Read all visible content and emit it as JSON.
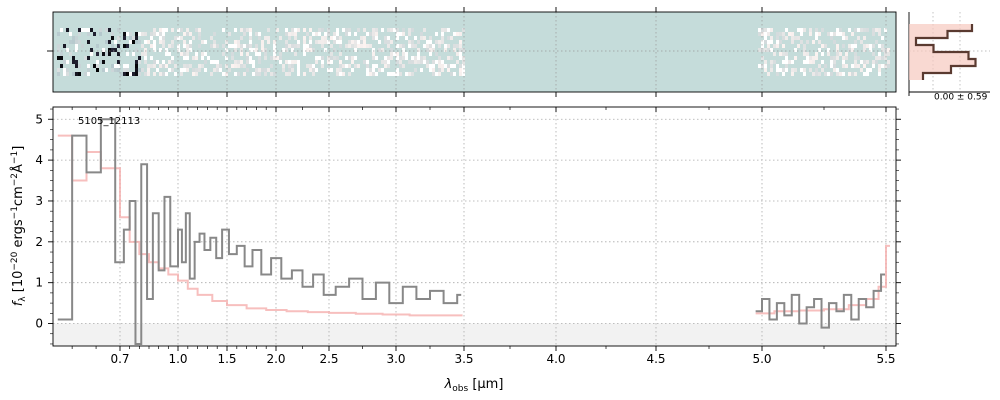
{
  "chart_data": {
    "type": "line",
    "object_label": "5105_12113",
    "xlabel_main": "λ",
    "xlabel_sub": "obs",
    "xlabel_unit": "[μm]",
    "ylabel": {
      "f": "f",
      "sub": "λ",
      "open": "[10",
      "exp1": "−20",
      "mid": " ergs",
      "exp2": "−1",
      "cm": "cm",
      "exp3": "−2",
      "ang": "Å",
      "exp4": "−1",
      "close": "]"
    },
    "x_ticks": [
      {
        "value": 0.7,
        "label": "0.7"
      },
      {
        "value": 1.0,
        "label": "1.0"
      },
      {
        "value": 1.5,
        "label": "1.5"
      },
      {
        "value": 2.0,
        "label": "2.0"
      },
      {
        "value": 2.5,
        "label": "2.5"
      },
      {
        "value": 3.0,
        "label": "3.0"
      },
      {
        "value": 3.5,
        "label": "3.5"
      },
      {
        "value": 4.0,
        "label": "4.0"
      },
      {
        "value": 4.5,
        "label": "4.5"
      },
      {
        "value": 5.0,
        "label": "5.0"
      },
      {
        "value": 5.5,
        "label": "5.5"
      }
    ],
    "y_ticks": [
      {
        "value": 0,
        "label": "0"
      },
      {
        "value": 1,
        "label": "1"
      },
      {
        "value": 2,
        "label": "2"
      },
      {
        "value": 3,
        "label": "3"
      },
      {
        "value": 4,
        "label": "4"
      },
      {
        "value": 5,
        "label": "5"
      }
    ],
    "ylim": [
      -0.55,
      5.3
    ],
    "xlim": [
      0.56,
      5.53
    ],
    "grid": true,
    "noise_label": "0.00 ± 0.59",
    "series": [
      {
        "role": "observed-spectrum",
        "color": "#888888",
        "x": [
          0.57,
          0.6,
          0.63,
          0.66,
          0.69,
          0.72,
          0.75,
          0.78,
          0.81,
          0.84,
          0.87,
          0.9,
          0.93,
          0.96,
          1.0,
          1.04,
          1.08,
          1.12,
          1.17,
          1.22,
          1.27,
          1.33,
          1.39,
          1.45,
          1.52,
          1.6,
          1.68,
          1.76,
          1.85,
          1.95,
          2.05,
          2.15,
          2.25,
          2.35,
          2.45,
          2.55,
          2.65,
          2.75,
          2.85,
          2.95,
          3.05,
          3.15,
          3.25,
          3.35,
          3.45
        ],
        "y": [
          0.1,
          4.6,
          3.7,
          5.0,
          1.5,
          2.3,
          3.0,
          -0.5,
          3.9,
          0.6,
          2.7,
          1.3,
          3.1,
          1.4,
          2.3,
          1.5,
          2.7,
          1.1,
          2.0,
          2.2,
          1.8,
          2.1,
          1.6,
          2.3,
          1.7,
          1.9,
          1.4,
          1.8,
          1.2,
          1.6,
          1.1,
          1.3,
          0.9,
          1.2,
          0.7,
          0.9,
          1.1,
          0.6,
          1.0,
          0.5,
          0.9,
          0.6,
          0.8,
          0.5,
          0.7
        ]
      },
      {
        "role": "observed-spectrum-red",
        "color": "#888888",
        "x": [
          4.97,
          5.0,
          5.03,
          5.06,
          5.09,
          5.12,
          5.15,
          5.18,
          5.21,
          5.24,
          5.27,
          5.3,
          5.33,
          5.36,
          5.39,
          5.42,
          5.45,
          5.48
        ],
        "y": [
          0.3,
          0.6,
          0.1,
          0.5,
          0.2,
          0.7,
          0.0,
          0.4,
          0.6,
          -0.1,
          0.5,
          0.3,
          0.7,
          0.1,
          0.6,
          0.4,
          0.8,
          1.2
        ]
      },
      {
        "role": "model",
        "color": "#f4a9a8",
        "x": [
          0.57,
          0.6,
          0.63,
          0.66,
          0.7,
          0.75,
          0.8,
          0.85,
          0.9,
          0.95,
          1.0,
          1.1,
          1.2,
          1.35,
          1.5,
          1.7,
          1.9,
          2.1,
          2.3,
          2.5,
          2.7,
          2.9,
          3.1,
          3.3,
          3.46
        ],
        "y": [
          4.6,
          3.5,
          4.2,
          3.8,
          2.6,
          2.0,
          1.7,
          1.5,
          1.35,
          1.2,
          1.05,
          0.85,
          0.7,
          0.55,
          0.45,
          0.37,
          0.33,
          0.3,
          0.28,
          0.26,
          0.24,
          0.22,
          0.2,
          0.2,
          0.2
        ]
      },
      {
        "role": "model-red",
        "color": "#f4a9a8",
        "x": [
          4.97,
          5.05,
          5.15,
          5.25,
          5.35,
          5.42,
          5.47,
          5.5
        ],
        "y": [
          0.25,
          0.3,
          0.32,
          0.35,
          0.45,
          0.6,
          0.9,
          1.9
        ]
      }
    ],
    "profile_panel": {
      "steps": [
        0.9,
        0.55,
        0.1,
        0.35,
        0.85,
        0.95,
        0.6,
        0.2
      ]
    },
    "colors": {
      "spectrum": "#888888",
      "model": "#f4a9a8",
      "twod_background": "#c5dcda",
      "profile_line": "#5a3a30",
      "profile_fill": "#f7c9bf"
    }
  }
}
